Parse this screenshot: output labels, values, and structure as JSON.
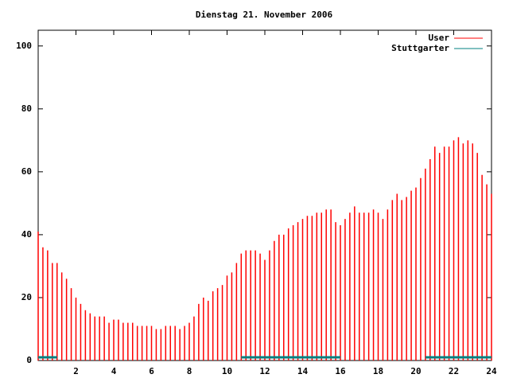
{
  "chart_data": {
    "type": "impulse",
    "title": "Dienstag 21. November 2006",
    "x": [
      0,
      0.25,
      0.5,
      0.75,
      1,
      1.25,
      1.5,
      1.75,
      2,
      2.25,
      2.5,
      2.75,
      3,
      3.25,
      3.5,
      3.75,
      4,
      4.25,
      4.5,
      4.75,
      5,
      5.25,
      5.5,
      5.75,
      6,
      6.25,
      6.5,
      6.75,
      7,
      7.25,
      7.5,
      7.75,
      8,
      8.25,
      8.5,
      8.75,
      9,
      9.25,
      9.5,
      9.75,
      10,
      10.25,
      10.5,
      10.75,
      11,
      11.25,
      11.5,
      11.75,
      12,
      12.25,
      12.5,
      12.75,
      13,
      13.25,
      13.5,
      13.75,
      14,
      14.25,
      14.5,
      14.75,
      15,
      15.25,
      15.5,
      15.75,
      16,
      16.25,
      16.5,
      16.75,
      17,
      17.25,
      17.5,
      17.75,
      18,
      18.25,
      18.5,
      18.75,
      19,
      19.25,
      19.5,
      19.75,
      20,
      20.25,
      20.5,
      20.75,
      21,
      21.25,
      21.5,
      21.75,
      22,
      22.25,
      22.5,
      22.75,
      23,
      23.25,
      23.5,
      23.75,
      24
    ],
    "series": [
      {
        "name": "User",
        "color": "#ff0000",
        "values": [
          41,
          36,
          35,
          31,
          31,
          28,
          26,
          23,
          20,
          18,
          16,
          15,
          14,
          14,
          14,
          12,
          13,
          13,
          12,
          12,
          12,
          11,
          11,
          11,
          11,
          10,
          10,
          11,
          11,
          11,
          10,
          11,
          12,
          14,
          18,
          20,
          19,
          22,
          23,
          24,
          27,
          28,
          31,
          34,
          35,
          35,
          35,
          34,
          32,
          35,
          38,
          40,
          40,
          42,
          43,
          44,
          45,
          46,
          46,
          47,
          47,
          48,
          48,
          44,
          43,
          45,
          47,
          49,
          47,
          47,
          47,
          48,
          47,
          45,
          48,
          51,
          53,
          51,
          52,
          54,
          55,
          58,
          61,
          64,
          68,
          66,
          68,
          68,
          70,
          71,
          69,
          70,
          69,
          66,
          59,
          56,
          53
        ]
      },
      {
        "name": "Stuttgarter",
        "color": "#008080",
        "values": [
          1,
          1,
          1,
          1,
          1,
          null,
          null,
          null,
          null,
          null,
          null,
          null,
          null,
          null,
          null,
          null,
          null,
          null,
          null,
          null,
          null,
          null,
          null,
          null,
          null,
          null,
          null,
          null,
          null,
          null,
          null,
          null,
          null,
          null,
          null,
          null,
          null,
          null,
          null,
          null,
          null,
          null,
          null,
          1,
          1,
          1,
          1,
          1,
          1,
          1,
          1,
          1,
          1,
          1,
          1,
          1,
          1,
          1,
          1,
          1,
          1,
          1,
          1,
          1,
          1,
          null,
          null,
          null,
          null,
          null,
          null,
          null,
          null,
          null,
          null,
          null,
          null,
          null,
          null,
          null,
          null,
          null,
          1,
          1,
          1,
          1,
          1,
          1,
          1,
          1,
          1,
          1,
          1,
          1,
          1,
          1,
          1
        ]
      }
    ],
    "xlim": [
      0,
      24
    ],
    "xticks": [
      2,
      4,
      6,
      8,
      10,
      12,
      14,
      16,
      18,
      20,
      22,
      24
    ],
    "ylim": [
      0,
      105
    ],
    "yticks": [
      0,
      20,
      40,
      60,
      80,
      100
    ],
    "legend": "upper right"
  }
}
